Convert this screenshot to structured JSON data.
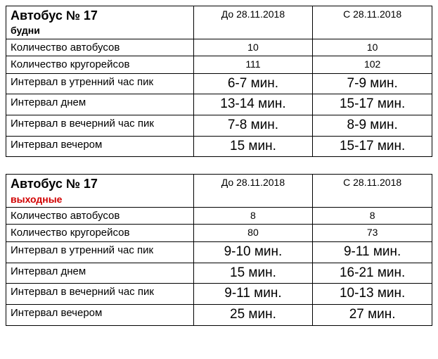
{
  "tables": [
    {
      "title": "Автобус № 17",
      "subtitle": "будни",
      "subtitle_color": "#000000",
      "col_headers": [
        "До 28.11.2018",
        "С 28.11.2018"
      ],
      "rows": [
        {
          "label": "Количество автобусов",
          "v1": "10",
          "v2": "10",
          "size": "small"
        },
        {
          "label": "Количество кругорейсов",
          "v1": "111",
          "v2": "102",
          "size": "small"
        },
        {
          "label": "Интервал в утренний час пик",
          "v1": "6-7 мин.",
          "v2": "7-9 мин.",
          "size": "large"
        },
        {
          "label": "Интервал днем",
          "v1": "13-14 мин.",
          "v2": "15-17 мин.",
          "size": "large"
        },
        {
          "label": "Интервал в вечерний час пик",
          "v1": "7-8 мин.",
          "v2": "8-9 мин.",
          "size": "large"
        },
        {
          "label": "Интервал вечером",
          "v1": "15 мин.",
          "v2": "15-17 мин.",
          "size": "large"
        }
      ]
    },
    {
      "title": "Автобус № 17",
      "subtitle": "выходные",
      "subtitle_color": "#d10000",
      "col_headers": [
        "До 28.11.2018",
        "С 28.11.2018"
      ],
      "rows": [
        {
          "label": "Количество автобусов",
          "v1": "8",
          "v2": "8",
          "size": "small"
        },
        {
          "label": "Количество кругорейсов",
          "v1": "80",
          "v2": "73",
          "size": "small"
        },
        {
          "label": "Интервал в утренний час пик",
          "v1": "9-10 мин.",
          "v2": "9-11 мин.",
          "size": "large"
        },
        {
          "label": "Интервал днем",
          "v1": "15 мин.",
          "v2": "16-21 мин.",
          "size": "large"
        },
        {
          "label": "Интервал в вечерний час пик",
          "v1": "9-11 мин.",
          "v2": "10-13 мин.",
          "size": "large"
        },
        {
          "label": "Интервал вечером",
          "v1": "25 мин.",
          "v2": "27 мин.",
          "size": "large"
        }
      ]
    }
  ]
}
